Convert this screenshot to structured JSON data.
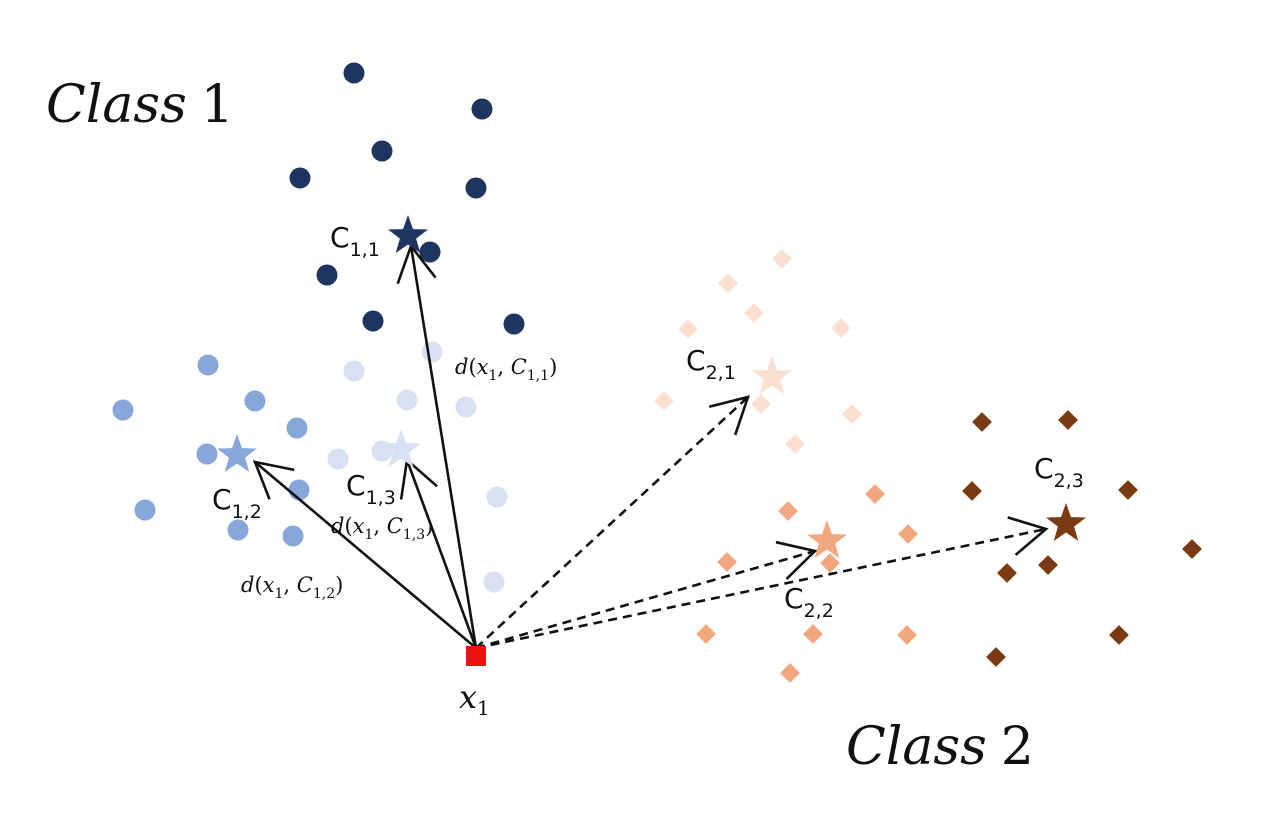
{
  "class_titles": [
    {
      "word": "Class",
      "num": "1"
    },
    {
      "word": "Class",
      "num": "2"
    }
  ],
  "query_point": {
    "name": "x",
    "sub": "1",
    "color": "#ee1111"
  },
  "clusters": [
    {
      "id": "c11",
      "label": "C",
      "sub": "1,1",
      "color": "#1e3461",
      "marker": "circle"
    },
    {
      "id": "c12",
      "label": "C",
      "sub": "1,2",
      "color": "#87a6da",
      "marker": "circle"
    },
    {
      "id": "c13",
      "label": "C",
      "sub": "1,3",
      "color": "#d7e1f3",
      "marker": "circle"
    },
    {
      "id": "c21",
      "label": "C",
      "sub": "2,1",
      "color": "#fbe0d1",
      "marker": "diamond"
    },
    {
      "id": "c22",
      "label": "C",
      "sub": "2,2",
      "color": "#f2a87e",
      "marker": "diamond"
    },
    {
      "id": "c23",
      "label": "C",
      "sub": "2,3",
      "color": "#7a3a12",
      "marker": "diamond"
    }
  ],
  "distance_labels": [
    {
      "id": "d11",
      "fn": "d",
      "var": "x",
      "vsub": "1",
      "cvar": "C",
      "csub": "1,1"
    },
    {
      "id": "d13",
      "fn": "d",
      "var": "x",
      "vsub": "1",
      "cvar": "C",
      "csub": "1,3"
    },
    {
      "id": "d12",
      "fn": "d",
      "var": "x",
      "vsub": "1",
      "cvar": "C",
      "csub": "1,2"
    }
  ],
  "arrow_styles": {
    "class1": "solid",
    "class2": "dashed"
  }
}
